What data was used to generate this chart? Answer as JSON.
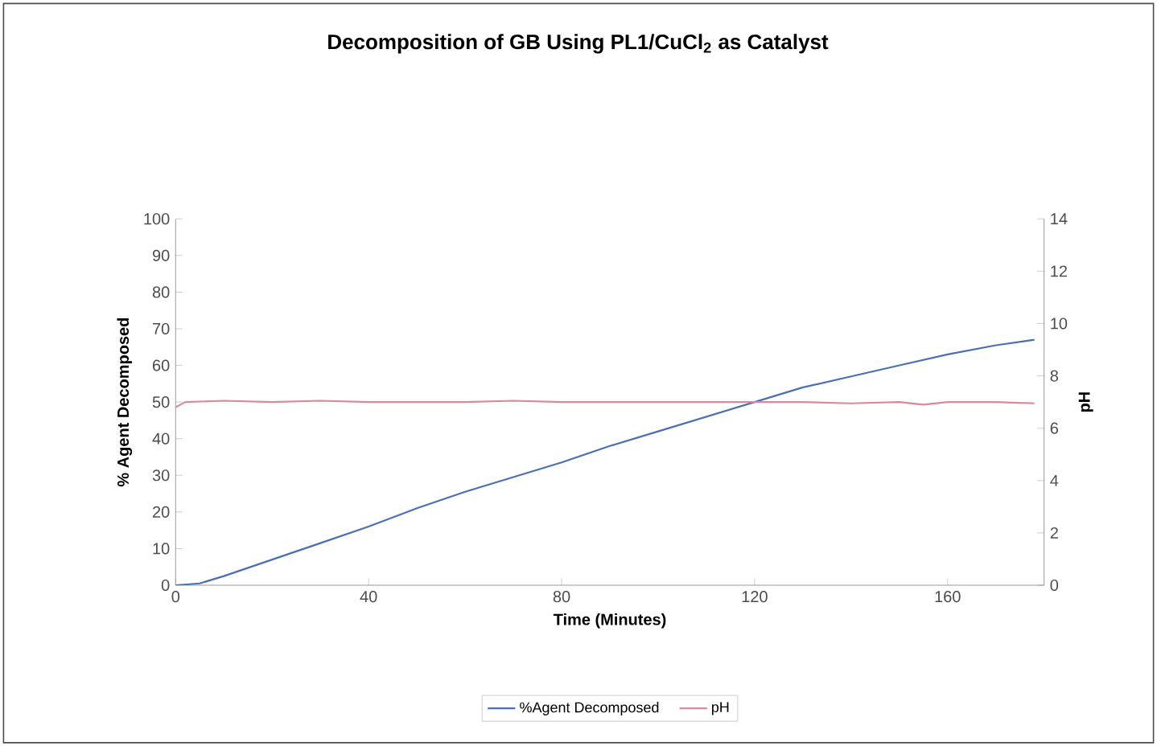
{
  "chart_data": {
    "type": "line",
    "title": "Decomposition of GB Using PL1/CuCl$_{2}$ as Catalyst",
    "xlabel": "Time (Minutes)",
    "ylabel": "% Agent Decomposed",
    "y2label": "pH",
    "xlim": [
      0,
      180
    ],
    "xticks": [
      0,
      40,
      80,
      120,
      160
    ],
    "ylim": [
      0,
      100
    ],
    "yticks": [
      0,
      10,
      20,
      30,
      40,
      50,
      60,
      70,
      80,
      90,
      100
    ],
    "y2lim": [
      0,
      14
    ],
    "y2ticks": [
      0,
      2,
      4,
      6,
      8,
      10,
      12,
      14
    ],
    "legend": "bottom",
    "grid": false,
    "series": [
      {
        "name": "%Agent Decomposed",
        "color": "#4a6fb5",
        "x": [
          0,
          5,
          10,
          20,
          30,
          40,
          50,
          60,
          70,
          80,
          90,
          100,
          110,
          120,
          130,
          140,
          150,
          160,
          170,
          178
        ],
        "values": [
          0,
          0.5,
          2.5,
          7,
          11.5,
          16,
          21,
          25.5,
          29.5,
          33.5,
          38,
          42,
          46,
          50,
          54,
          57,
          60,
          63,
          65.5,
          67
        ]
      },
      {
        "name": "pH",
        "color": "#d9899b",
        "axis": "y2",
        "x": [
          0,
          2,
          10,
          20,
          30,
          40,
          50,
          60,
          70,
          80,
          90,
          100,
          110,
          120,
          130,
          140,
          150,
          155,
          160,
          170,
          178
        ],
        "values": [
          6.8,
          7.0,
          7.05,
          7.0,
          7.05,
          7.0,
          7.0,
          7.0,
          7.05,
          7.0,
          7.0,
          7.0,
          7.0,
          7.0,
          7.0,
          6.95,
          7.0,
          6.9,
          7.0,
          7.0,
          6.95
        ]
      }
    ]
  }
}
